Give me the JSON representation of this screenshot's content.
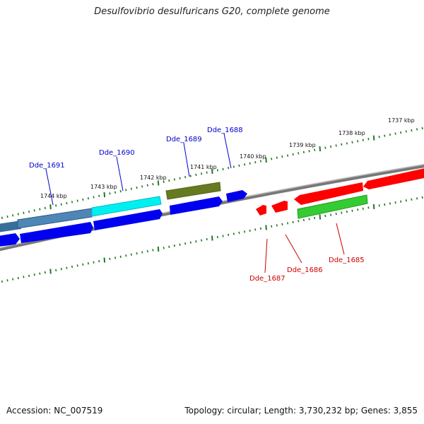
{
  "title": "Desulfovibrio desulfuricans G20, complete genome",
  "footer": {
    "accession": "Accession: NC_007519",
    "topology": "Topology: circular; Length: 3,730,232 bp; Genes: 3,855"
  },
  "scale_labels": [
    "1744 kbp",
    "1743 kbp",
    "1742 kbp",
    "1741 kbp",
    "1740 kbp",
    "1739 kbp",
    "1738 kbp",
    "1737 kbp"
  ],
  "gene_labels": [
    {
      "name": "Dde_1691",
      "strand": "reverse"
    },
    {
      "name": "Dde_1690",
      "strand": "reverse"
    },
    {
      "name": "Dde_1689",
      "strand": "reverse"
    },
    {
      "name": "Dde_1688",
      "strand": "reverse"
    },
    {
      "name": "Dde_1687",
      "strand": "forward"
    },
    {
      "name": "Dde_1686",
      "strand": "forward"
    },
    {
      "name": "Dde_1685",
      "strand": "forward"
    }
  ],
  "colors": {
    "reverse_gene": "#0000ee",
    "forward_gene": "#ff0000",
    "reverse_label": "#0000cc",
    "forward_label": "#cc0000",
    "backbone": "#888888",
    "tick": "#227722",
    "cds_steelblue": "#4f86b8",
    "cds_cyan": "#00ffff",
    "cds_olive": "#667a22",
    "cds_green": "#33cc33"
  }
}
